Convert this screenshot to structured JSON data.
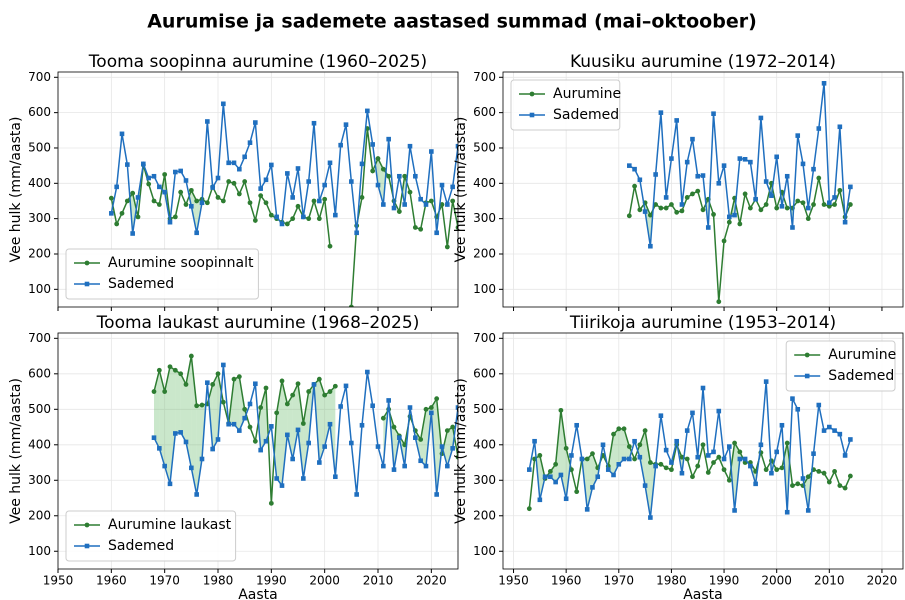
{
  "title": "Aurumise ja sademete aastased summad (mai–oktoober)",
  "chart_data": [
    {
      "type": "line",
      "title": "Tooma soopinna aurumine (1960–2025)",
      "ylabel": "Vee hulk (mm/aasta)",
      "x": [
        1960,
        1961,
        1962,
        1963,
        1964,
        1965,
        1966,
        1967,
        1968,
        1969,
        1970,
        1971,
        1972,
        1973,
        1974,
        1975,
        1976,
        1977,
        1978,
        1979,
        1980,
        1981,
        1982,
        1983,
        1984,
        1985,
        1986,
        1987,
        1988,
        1989,
        1990,
        1991,
        1992,
        1993,
        1994,
        1995,
        1996,
        1997,
        1998,
        1999,
        2000,
        2001,
        2002,
        2003,
        2004,
        2005,
        2006,
        2007,
        2008,
        2009,
        2010,
        2011,
        2012,
        2013,
        2014,
        2015,
        2016,
        2017,
        2018,
        2019,
        2020,
        2021,
        2022,
        2023,
        2024,
        2025
      ],
      "series": [
        {
          "name": "Aurumine soopinnalt",
          "color": "#2e7d32",
          "marker": "circle",
          "values": [
            358,
            285,
            315,
            350,
            372,
            305,
            452,
            398,
            350,
            340,
            425,
            300,
            305,
            375,
            340,
            380,
            350,
            355,
            345,
            390,
            360,
            350,
            405,
            400,
            370,
            405,
            345,
            295,
            365,
            345,
            310,
            300,
            290,
            285,
            300,
            335,
            305,
            300,
            350,
            300,
            355,
            222,
            null,
            null,
            null,
            50,
            280,
            360,
            555,
            435,
            470,
            440,
            420,
            350,
            320,
            420,
            375,
            275,
            270,
            345,
            350,
            305,
            340,
            220,
            350,
            275
          ]
        },
        {
          "name": "Sademed",
          "color": "#1f6fbf",
          "marker": "square",
          "values": [
            315,
            390,
            540,
            453,
            258,
            360,
            455,
            415,
            420,
            390,
            375,
            290,
            432,
            435,
            408,
            335,
            260,
            345,
            575,
            388,
            415,
            625,
            458,
            458,
            440,
            475,
            515,
            572,
            385,
            410,
            452,
            305,
            285,
            428,
            360,
            442,
            305,
            405,
            570,
            350,
            395,
            458,
            310,
            508,
            566,
            405,
            260,
            455,
            605,
            510,
            395,
            340,
            525,
            330,
            420,
            340,
            505,
            420,
            355,
            340,
            490,
            260,
            395,
            340,
            390,
            505
          ]
        }
      ],
      "xlim": [
        1950,
        2025
      ],
      "xticks": [
        1950,
        1960,
        1970,
        1980,
        1990,
        2000,
        2010,
        2020
      ],
      "ylim": [
        50,
        715
      ],
      "yticks": [
        100,
        200,
        300,
        400,
        500,
        600,
        700
      ],
      "grid": true,
      "legend": "lower left",
      "fill_color": "#66bb6a"
    },
    {
      "type": "line",
      "title": "Kuusiku aurumine (1972–2014)",
      "ylabel": "Vee hulk (mm/aasta)",
      "x": [
        1972,
        1973,
        1974,
        1975,
        1976,
        1977,
        1978,
        1979,
        1980,
        1981,
        1982,
        1983,
        1984,
        1985,
        1986,
        1987,
        1988,
        1989,
        1990,
        1991,
        1992,
        1993,
        1994,
        1995,
        1996,
        1997,
        1998,
        1999,
        2000,
        2001,
        2002,
        2003,
        2004,
        2005,
        2006,
        2007,
        2008,
        2009,
        2010,
        2011,
        2012,
        2013,
        2014
      ],
      "series": [
        {
          "name": "Aurumine",
          "color": "#2e7d32",
          "marker": "circle",
          "values": [
            308,
            392,
            325,
            345,
            310,
            340,
            330,
            330,
            340,
            318,
            322,
            360,
            370,
            378,
            325,
            355,
            312,
            65,
            237,
            290,
            358,
            285,
            370,
            330,
            355,
            325,
            340,
            400,
            330,
            375,
            330,
            330,
            350,
            345,
            300,
            340,
            415,
            340,
            335,
            340,
            380,
            305,
            340
          ]
        },
        {
          "name": "Sademed",
          "color": "#1f6fbf",
          "marker": "square",
          "values": [
            450,
            440,
            410,
            320,
            222,
            425,
            600,
            360,
            470,
            578,
            340,
            460,
            525,
            420,
            422,
            275,
            597,
            400,
            450,
            305,
            310,
            470,
            468,
            460,
            355,
            585,
            405,
            365,
            475,
            335,
            420,
            275,
            535,
            455,
            330,
            440,
            555,
            683,
            345,
            360,
            560,
            290,
            390
          ]
        }
      ],
      "xlim": [
        1948,
        2024
      ],
      "xticks": [
        1950,
        1960,
        1970,
        1980,
        1990,
        2000,
        2010,
        2020
      ],
      "ylim": [
        50,
        715
      ],
      "yticks": [
        100,
        200,
        300,
        400,
        500,
        600,
        700
      ],
      "grid": true,
      "legend": "upper left",
      "fill_color": "#66bb6a"
    },
    {
      "type": "line",
      "title": "Tooma laukast aurumine (1968–2025)",
      "xlabel": "Aasta",
      "ylabel": "Vee hulk (mm/aasta)",
      "x": [
        1968,
        1969,
        1970,
        1971,
        1972,
        1973,
        1974,
        1975,
        1976,
        1977,
        1978,
        1979,
        1980,
        1981,
        1982,
        1983,
        1984,
        1985,
        1986,
        1987,
        1988,
        1989,
        1990,
        1991,
        1992,
        1993,
        1994,
        1995,
        1996,
        1997,
        1998,
        1999,
        2000,
        2001,
        2002,
        2003,
        2004,
        2005,
        2006,
        2007,
        2008,
        2009,
        2010,
        2011,
        2012,
        2013,
        2014,
        2015,
        2016,
        2017,
        2018,
        2019,
        2020,
        2021,
        2022,
        2023,
        2024,
        2025
      ],
      "series": [
        {
          "name": "Aurumine laukast",
          "color": "#2e7d32",
          "marker": "circle",
          "values": [
            550,
            610,
            550,
            620,
            610,
            600,
            570,
            650,
            510,
            512,
            515,
            570,
            600,
            520,
            460,
            585,
            592,
            500,
            450,
            410,
            505,
            560,
            235,
            490,
            580,
            515,
            540,
            572,
            460,
            550,
            570,
            585,
            540,
            550,
            565,
            null,
            null,
            null,
            null,
            null,
            null,
            null,
            null,
            475,
            500,
            450,
            425,
            400,
            480,
            440,
            415,
            500,
            505,
            530,
            375,
            440,
            450,
            365
          ]
        },
        {
          "name": "Sademed",
          "color": "#1f6fbf",
          "marker": "square",
          "values": [
            420,
            390,
            340,
            290,
            432,
            435,
            408,
            335,
            260,
            360,
            575,
            388,
            415,
            625,
            458,
            458,
            440,
            475,
            515,
            572,
            385,
            410,
            452,
            305,
            285,
            428,
            360,
            442,
            305,
            405,
            570,
            350,
            395,
            458,
            310,
            508,
            566,
            405,
            260,
            455,
            605,
            510,
            395,
            340,
            525,
            330,
            420,
            340,
            505,
            420,
            355,
            340,
            490,
            260,
            395,
            340,
            390,
            505
          ]
        }
      ],
      "xlim": [
        1950,
        2025
      ],
      "xticks": [
        1950,
        1960,
        1970,
        1980,
        1990,
        2000,
        2010,
        2020
      ],
      "ylim": [
        50,
        715
      ],
      "yticks": [
        100,
        200,
        300,
        400,
        500,
        600,
        700
      ],
      "grid": true,
      "legend": "lower left",
      "fill_color": "#66bb6a"
    },
    {
      "type": "line",
      "title": "Tiirikoja aurumine (1953–2014)",
      "xlabel": "Aasta",
      "ylabel": "Vee hulk (mm/aasta)",
      "x": [
        1953,
        1954,
        1955,
        1956,
        1957,
        1958,
        1959,
        1960,
        1961,
        1962,
        1963,
        1964,
        1965,
        1966,
        1967,
        1968,
        1969,
        1970,
        1971,
        1972,
        1973,
        1974,
        1975,
        1976,
        1977,
        1978,
        1979,
        1980,
        1981,
        1982,
        1983,
        1984,
        1985,
        1986,
        1987,
        1988,
        1989,
        1990,
        1991,
        1992,
        1993,
        1994,
        1995,
        1996,
        1997,
        1998,
        1999,
        2000,
        2001,
        2002,
        2003,
        2004,
        2005,
        2006,
        2007,
        2008,
        2009,
        2010,
        2011,
        2012,
        2013,
        2014
      ],
      "series": [
        {
          "name": "Aurumine",
          "color": "#2e7d32",
          "marker": "circle",
          "values": [
            220,
            360,
            370,
            305,
            325,
            345,
            497,
            390,
            330,
            268,
            360,
            360,
            375,
            335,
            370,
            340,
            430,
            445,
            445,
            395,
            360,
            400,
            440,
            350,
            345,
            345,
            335,
            330,
            400,
            365,
            360,
            310,
            340,
            400,
            322,
            350,
            365,
            330,
            300,
            405,
            380,
            350,
            350,
            325,
            378,
            330,
            355,
            330,
            335,
            405,
            285,
            290,
            285,
            310,
            330,
            325,
            320,
            295,
            325,
            285,
            278,
            312
          ]
        },
        {
          "name": "Sademed",
          "color": "#1f6fbf",
          "marker": "square",
          "values": [
            330,
            410,
            245,
            310,
            310,
            295,
            315,
            248,
            370,
            455,
            360,
            218,
            280,
            310,
            400,
            330,
            315,
            345,
            360,
            360,
            410,
            365,
            285,
            195,
            340,
            482,
            385,
            350,
            410,
            320,
            440,
            490,
            365,
            560,
            370,
            380,
            495,
            360,
            395,
            215,
            360,
            360,
            340,
            290,
            400,
            578,
            320,
            380,
            455,
            210,
            530,
            500,
            305,
            215,
            375,
            512,
            440,
            450,
            440,
            430,
            370,
            415
          ]
        }
      ],
      "xlim": [
        1948,
        2024
      ],
      "xticks": [
        1950,
        1960,
        1970,
        1980,
        1990,
        2000,
        2010,
        2020
      ],
      "ylim": [
        50,
        715
      ],
      "yticks": [
        100,
        200,
        300,
        400,
        500,
        600,
        700
      ],
      "grid": true,
      "legend": "upper right",
      "fill_color": "#66bb6a"
    }
  ]
}
